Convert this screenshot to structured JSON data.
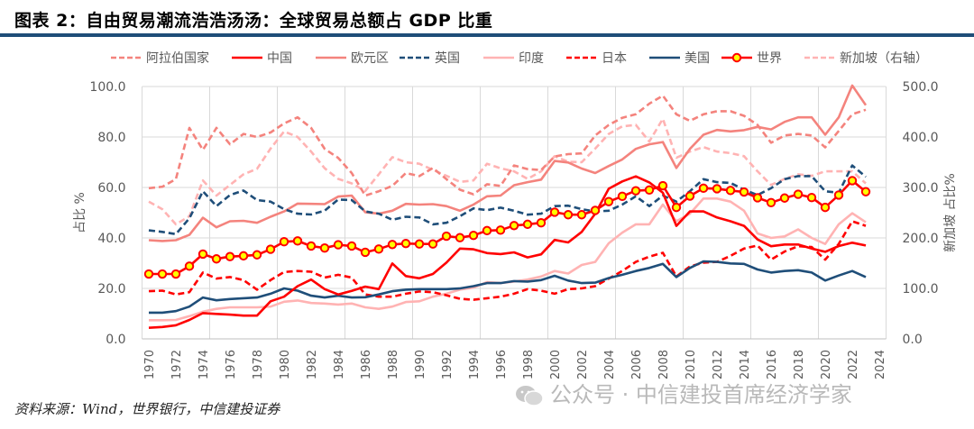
{
  "title": "图表 2：自由贸易潮流浩浩汤汤：全球贸易总额占 GDP 比重",
  "source": "资料来源：Wind，世界银行，中信建投证券",
  "watermark": "公众号 · 中信建投首席经济学家",
  "chart_data": {
    "type": "line",
    "title": "自由贸易潮流浩浩汤汤：全球贸易总额占 GDP 比重",
    "ylabel": "占比 %",
    "y2label": "新加坡 占比%",
    "ylim": [
      0,
      100
    ],
    "y2lim": [
      0,
      500
    ],
    "yticks": [
      "0.0",
      "20.0",
      "40.0",
      "60.0",
      "80.0",
      "100.0"
    ],
    "y2ticks": [
      "0.0",
      "100.0",
      "200.0",
      "300.0",
      "400.0",
      "500.0"
    ],
    "xticks": [
      "1970",
      "1972",
      "1974",
      "1976",
      "1978",
      "1980",
      "1982",
      "1984",
      "1986",
      "1988",
      "1990",
      "1992",
      "1994",
      "1996",
      "1998",
      "2000",
      "2002",
      "2004",
      "2006",
      "2008",
      "2010",
      "2012",
      "2014",
      "2016",
      "2018",
      "2020",
      "2022",
      "2024"
    ],
    "x_start": 1970,
    "grid": true,
    "legend_placement": "top",
    "series": [
      {
        "name": "阿拉伯国家",
        "axis": "left",
        "color": "#f4837d",
        "dash": true,
        "marker": false,
        "values": [
          59.7,
          60.3,
          63.3,
          83.6,
          74.9,
          83.6,
          77.1,
          81.2,
          80,
          81.8,
          85.4,
          87.8,
          83.6,
          75.3,
          71.7,
          65.7,
          56.8,
          58.5,
          60.6,
          65.7,
          64.5,
          67.7,
          63.3,
          59.1,
          57.3,
          61.3,
          60.6,
          68.7,
          67.3,
          66.9,
          72.3,
          73.2,
          73.5,
          80.6,
          84.8,
          87.6,
          89,
          93.2,
          96.4,
          89,
          86.4,
          89,
          90.2,
          90.2,
          88.4,
          84.8,
          77.7,
          80.6,
          81.2,
          80.6,
          75.9,
          82.4,
          89,
          90.8
        ]
      },
      {
        "name": "中国",
        "axis": "left",
        "color": "#ff0000",
        "dash": false,
        "marker": false,
        "values": [
          4.4,
          4.7,
          5.4,
          7.5,
          10.2,
          9.9,
          9.6,
          9.2,
          9.2,
          14.9,
          16.7,
          20.9,
          23.5,
          19.7,
          17.6,
          19,
          20.7,
          19.7,
          29.9,
          24.9,
          24,
          25.7,
          30.2,
          35.8,
          35.5,
          34,
          33.6,
          34.3,
          32.3,
          33.5,
          39.2,
          38.2,
          42.4,
          49.6,
          59.5,
          62.4,
          64.4,
          62,
          57.9,
          44.8,
          50.5,
          50.5,
          48.1,
          46.6,
          44.8,
          39.4,
          36.7,
          37.4,
          37.4,
          35.8,
          34.5,
          36.8,
          38.1,
          37
        ]
      },
      {
        "name": "欧元区",
        "axis": "left",
        "color": "#f4837d",
        "dash": false,
        "marker": false,
        "values": [
          39.1,
          38.8,
          39.1,
          41.2,
          48,
          44.2,
          46.6,
          46.8,
          46,
          48.4,
          50.5,
          53.6,
          53.5,
          53.4,
          56.4,
          56.8,
          50.2,
          49.6,
          50.8,
          53.5,
          53.2,
          53.4,
          52.6,
          50.8,
          53.2,
          56.5,
          56.8,
          60.9,
          62.1,
          63.1,
          70.5,
          69.9,
          67.5,
          65.7,
          68.5,
          71.1,
          75.3,
          77.1,
          78,
          67.7,
          75.3,
          80.9,
          82.8,
          82.2,
          82.7,
          84,
          83,
          86,
          87.8,
          87.8,
          80.9,
          87.8,
          100.4,
          92.6
        ]
      },
      {
        "name": "英国",
        "axis": "left",
        "color": "#1f4e79",
        "dash": true,
        "marker": false,
        "values": [
          43,
          42.4,
          41.5,
          47.8,
          58.5,
          52.6,
          57,
          58.8,
          55,
          54.4,
          51.4,
          49.6,
          49.3,
          50.8,
          55.2,
          55,
          50.5,
          49.6,
          47.2,
          48.4,
          48.1,
          45.4,
          46,
          48.6,
          51.7,
          51,
          52,
          50.8,
          49.2,
          49.6,
          52.6,
          52.8,
          51.4,
          50.5,
          50.8,
          53.2,
          56.5,
          52.6,
          56.8,
          54.4,
          58.5,
          63.3,
          62.1,
          61.8,
          59.1,
          57,
          59.7,
          63.3,
          64.5,
          64.5,
          58.5,
          57.9,
          68.7,
          64.2
        ]
      },
      {
        "name": "印度",
        "axis": "left",
        "color": "#ffb3b3",
        "dash": false,
        "marker": false,
        "values": [
          7.4,
          7.4,
          7.5,
          9,
          10.8,
          11.9,
          12.5,
          12.5,
          12.5,
          12.8,
          14.7,
          15.2,
          14.2,
          14,
          13.6,
          14,
          12.5,
          11.9,
          12.8,
          14.6,
          14.9,
          16.7,
          17.9,
          19.5,
          20.3,
          22.5,
          22.1,
          22.7,
          23.5,
          24.7,
          26.9,
          25.9,
          29.3,
          30.5,
          37.9,
          42.1,
          45.4,
          45.4,
          53.2,
          46.6,
          49.6,
          55.6,
          55.6,
          54.4,
          50.8,
          41.8,
          40,
          40.6,
          43.4,
          40,
          37.6,
          45.4,
          49.8,
          46.2
        ]
      },
      {
        "name": "日本",
        "axis": "left",
        "color": "#ff0000",
        "dash": true,
        "marker": false,
        "values": [
          18.9,
          19.1,
          17.6,
          18.5,
          26.3,
          23.9,
          24.5,
          23.3,
          19.5,
          23.3,
          26.5,
          26.9,
          26.6,
          24.3,
          25.4,
          24.3,
          17.6,
          16.7,
          16.7,
          17.9,
          18.8,
          18.5,
          17.3,
          15.9,
          15.5,
          16.1,
          16.7,
          17.9,
          19.7,
          19.1,
          17.9,
          19.7,
          20,
          20.9,
          23.9,
          26.9,
          30.5,
          32.6,
          34.1,
          24.7,
          28.7,
          30.2,
          30.5,
          32.9,
          35.8,
          37,
          31.4,
          34.6,
          36.7,
          36.4,
          31.4,
          37.6,
          46.6,
          44.8
        ]
      },
      {
        "name": "美国",
        "axis": "left",
        "color": "#1f4e79",
        "dash": false,
        "marker": false,
        "values": [
          10.4,
          10.4,
          11,
          12.8,
          16.4,
          15.3,
          15.8,
          16.1,
          16.4,
          17.9,
          20,
          19.1,
          17.1,
          16.4,
          17.1,
          16.4,
          16.5,
          17.6,
          18.9,
          19.5,
          19.7,
          19.7,
          19.7,
          20,
          20.9,
          22.1,
          22.1,
          22.9,
          22.7,
          23.3,
          25,
          23.1,
          22.1,
          22.3,
          24.1,
          25.4,
          26.9,
          28.1,
          29.7,
          24.5,
          28.1,
          30.7,
          30.5,
          29.9,
          29.7,
          27.5,
          26.3,
          26.9,
          27.2,
          26.3,
          23.1,
          25.1,
          26.9,
          24.5
        ]
      },
      {
        "name": "世界",
        "axis": "left",
        "color": "#ff0000",
        "dash": false,
        "marker": true,
        "marker_fill": "#ffff00",
        "values": [
          25.7,
          25.7,
          25.7,
          28.8,
          33.6,
          31.7,
          32.6,
          32.9,
          33.3,
          35.5,
          38.5,
          38.8,
          36.8,
          36,
          37.3,
          36.8,
          34.3,
          35.6,
          37.4,
          37.8,
          37.6,
          37.6,
          40.7,
          40.1,
          41,
          42.9,
          43.1,
          44.9,
          45.4,
          46,
          50.2,
          49.2,
          49.2,
          50.9,
          54.4,
          56.5,
          58.7,
          59,
          60.7,
          52.1,
          56.6,
          59.7,
          59.5,
          58.8,
          58.2,
          55.9,
          54,
          55.8,
          57.3,
          56,
          52.1,
          57,
          62.7,
          58.3
        ]
      },
      {
        "name": "新加坡（右轴）",
        "axis": "right",
        "color": "#ffb3b3",
        "dash": true,
        "marker": false,
        "values": [
          272,
          257,
          227,
          243,
          314,
          284,
          305,
          326,
          337,
          377,
          411,
          400,
          371,
          338,
          317,
          308,
          293,
          326,
          360,
          350,
          347,
          335,
          323,
          311,
          314,
          347,
          338,
          332,
          317,
          332,
          362,
          351,
          350,
          377,
          406,
          421,
          424,
          391,
          436,
          359,
          371,
          380,
          371,
          368,
          362,
          332,
          305,
          317,
          326,
          323,
          332,
          332,
          332,
          308
        ]
      }
    ]
  }
}
